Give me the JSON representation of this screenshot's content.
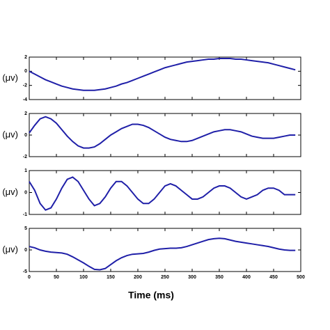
{
  "chart_data": [
    {
      "type": "line",
      "ylabel": "(μv)",
      "x": [
        0,
        10,
        20,
        30,
        40,
        50,
        60,
        70,
        80,
        90,
        100,
        110,
        120,
        130,
        140,
        150,
        160,
        170,
        180,
        190,
        200,
        210,
        220,
        230,
        240,
        250,
        260,
        270,
        280,
        290,
        300,
        310,
        320,
        330,
        340,
        350,
        360,
        370,
        380,
        390,
        400,
        410,
        420,
        430,
        440,
        450,
        460,
        470,
        480,
        490
      ],
      "series": [
        {
          "color": "#1f1fa8",
          "values": [
            0,
            -0.4,
            -0.8,
            -1.2,
            -1.5,
            -1.8,
            -2.1,
            -2.3,
            -2.5,
            -2.6,
            -2.7,
            -2.7,
            -2.7,
            -2.6,
            -2.5,
            -2.3,
            -2.1,
            -1.8,
            -1.6,
            -1.3,
            -1.0,
            -0.7,
            -0.4,
            -0.1,
            0.2,
            0.5,
            0.7,
            0.9,
            1.1,
            1.3,
            1.4,
            1.5,
            1.6,
            1.7,
            1.7,
            1.8,
            1.8,
            1.8,
            1.7,
            1.7,
            1.6,
            1.5,
            1.4,
            1.3,
            1.2,
            1.0,
            0.8,
            0.6,
            0.4,
            0.2
          ]
        }
      ],
      "xlim": [
        0,
        500
      ],
      "xticks": [
        0,
        50,
        100,
        150,
        200,
        250,
        300,
        350,
        400,
        450,
        500
      ],
      "ylim": [
        -4,
        2
      ],
      "yticks": [
        -4,
        -2,
        0,
        2
      ]
    },
    {
      "type": "line",
      "ylabel": "(μv)",
      "x": [
        0,
        10,
        20,
        30,
        40,
        50,
        60,
        70,
        80,
        90,
        100,
        110,
        120,
        130,
        140,
        150,
        160,
        170,
        180,
        190,
        200,
        210,
        220,
        230,
        240,
        250,
        260,
        270,
        280,
        290,
        300,
        310,
        320,
        330,
        340,
        350,
        360,
        370,
        380,
        390,
        400,
        410,
        420,
        430,
        440,
        450,
        460,
        470,
        480,
        490
      ],
      "series": [
        {
          "color": "#1f1fa8",
          "values": [
            0.2,
            0.9,
            1.5,
            1.7,
            1.5,
            1.1,
            0.5,
            -0.1,
            -0.6,
            -1.0,
            -1.2,
            -1.2,
            -1.1,
            -0.8,
            -0.4,
            0.0,
            0.3,
            0.6,
            0.8,
            1.0,
            1.0,
            0.9,
            0.7,
            0.4,
            0.1,
            -0.2,
            -0.4,
            -0.5,
            -0.6,
            -0.6,
            -0.5,
            -0.3,
            -0.1,
            0.1,
            0.3,
            0.4,
            0.5,
            0.5,
            0.4,
            0.3,
            0.1,
            -0.1,
            -0.2,
            -0.3,
            -0.3,
            -0.3,
            -0.2,
            -0.1,
            0.0,
            0.0
          ]
        }
      ],
      "xlim": [
        0,
        500
      ],
      "xticks": [
        0,
        50,
        100,
        150,
        200,
        250,
        300,
        350,
        400,
        450,
        500
      ],
      "ylim": [
        -2,
        2
      ],
      "yticks": [
        -2,
        0,
        2
      ]
    },
    {
      "type": "line",
      "ylabel": "(μv)",
      "x": [
        0,
        10,
        20,
        30,
        40,
        50,
        60,
        70,
        80,
        90,
        100,
        110,
        120,
        130,
        140,
        150,
        160,
        170,
        180,
        190,
        200,
        210,
        220,
        230,
        240,
        250,
        260,
        270,
        280,
        290,
        300,
        310,
        320,
        330,
        340,
        350,
        360,
        370,
        380,
        390,
        400,
        410,
        420,
        430,
        440,
        450,
        460,
        470,
        480,
        490
      ],
      "series": [
        {
          "color": "#1f1fa8",
          "values": [
            0.5,
            0.1,
            -0.5,
            -0.8,
            -0.7,
            -0.3,
            0.2,
            0.6,
            0.7,
            0.5,
            0.1,
            -0.3,
            -0.6,
            -0.5,
            -0.2,
            0.2,
            0.5,
            0.5,
            0.3,
            0.0,
            -0.3,
            -0.5,
            -0.5,
            -0.3,
            0.0,
            0.3,
            0.4,
            0.3,
            0.1,
            -0.1,
            -0.3,
            -0.3,
            -0.2,
            0.0,
            0.2,
            0.3,
            0.3,
            0.2,
            0.0,
            -0.2,
            -0.3,
            -0.2,
            -0.1,
            0.1,
            0.2,
            0.2,
            0.1,
            -0.1,
            -0.1,
            -0.1
          ]
        }
      ],
      "xlim": [
        0,
        500
      ],
      "xticks": [
        0,
        50,
        100,
        150,
        200,
        250,
        300,
        350,
        400,
        450,
        500
      ],
      "ylim": [
        -1,
        1
      ],
      "yticks": [
        -1,
        0,
        1
      ]
    },
    {
      "type": "line",
      "ylabel": "(μv)",
      "xlabel": "Time  (ms)",
      "x": [
        0,
        10,
        20,
        30,
        40,
        50,
        60,
        70,
        80,
        90,
        100,
        110,
        120,
        130,
        140,
        150,
        160,
        170,
        180,
        190,
        200,
        210,
        220,
        230,
        240,
        250,
        260,
        270,
        280,
        290,
        300,
        310,
        320,
        330,
        340,
        350,
        360,
        370,
        380,
        390,
        400,
        410,
        420,
        430,
        440,
        450,
        460,
        470,
        480,
        490
      ],
      "series": [
        {
          "color": "#1f1fa8",
          "values": [
            0.8,
            0.5,
            0,
            -0.3,
            -0.5,
            -0.6,
            -0.7,
            -1.0,
            -1.6,
            -2.3,
            -3.0,
            -3.8,
            -4.5,
            -4.6,
            -4.3,
            -3.4,
            -2.5,
            -1.8,
            -1.3,
            -1.0,
            -0.9,
            -0.8,
            -0.5,
            -0.1,
            0.2,
            0.3,
            0.4,
            0.4,
            0.5,
            0.8,
            1.2,
            1.6,
            2.0,
            2.4,
            2.6,
            2.7,
            2.6,
            2.3,
            2.0,
            1.8,
            1.6,
            1.4,
            1.2,
            1.0,
            0.8,
            0.5,
            0.2,
            0.0,
            -0.1,
            -0.1
          ]
        }
      ],
      "xlim": [
        0,
        500
      ],
      "xticks": [
        0,
        50,
        100,
        150,
        200,
        250,
        300,
        350,
        400,
        450,
        500
      ],
      "ylim": [
        -5,
        5
      ],
      "yticks": [
        -5,
        0,
        5
      ]
    }
  ]
}
